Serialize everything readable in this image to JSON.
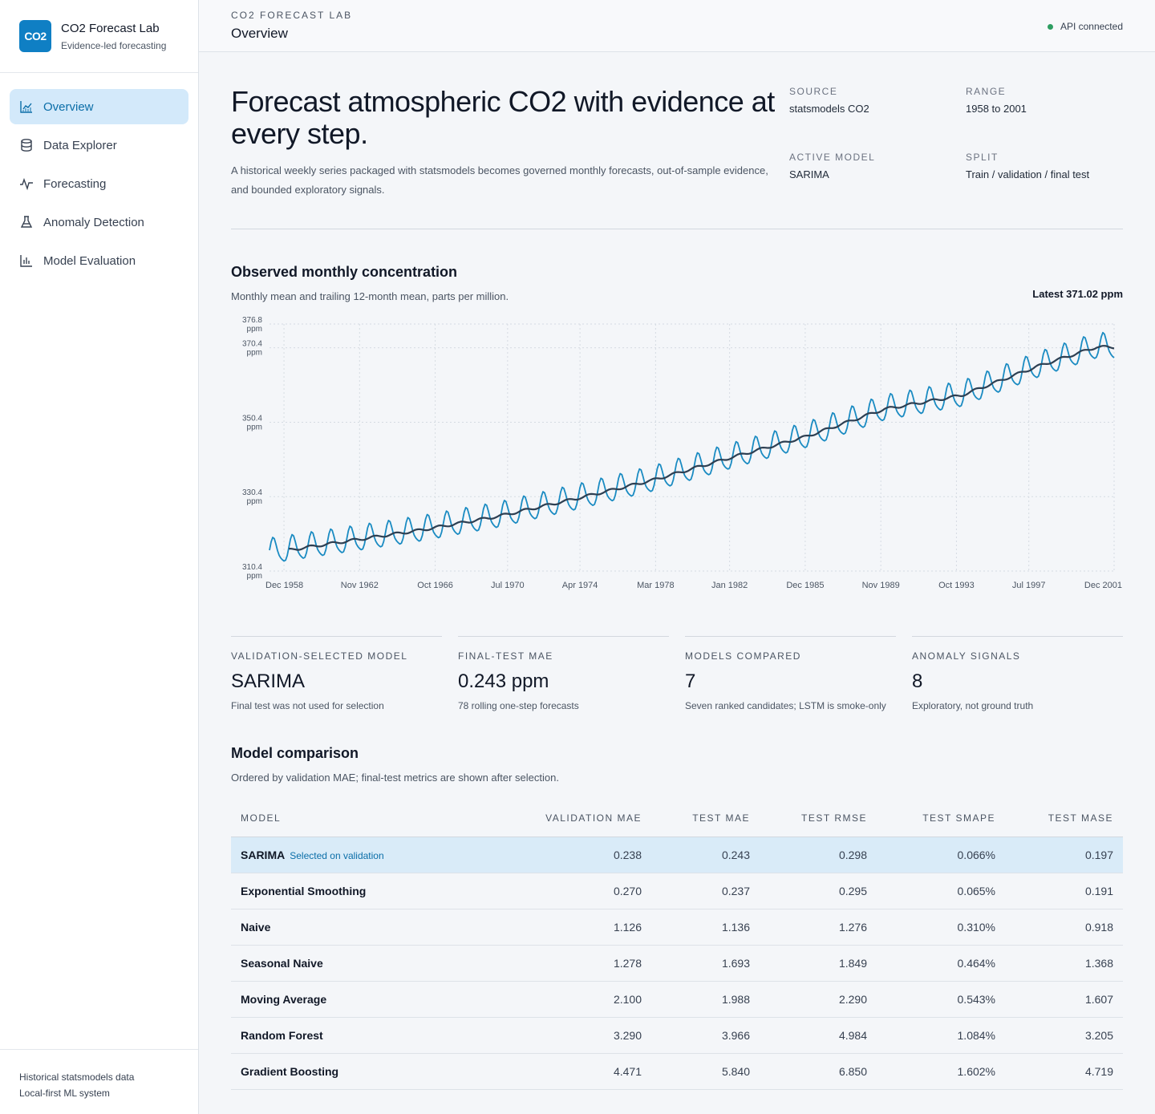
{
  "brand": {
    "logo": "CO2",
    "title": "CO2 Forecast Lab",
    "subtitle": "Evidence-led forecasting"
  },
  "nav": [
    {
      "label": "Overview",
      "icon": "chart-line-icon",
      "active": true
    },
    {
      "label": "Data Explorer",
      "icon": "database-icon",
      "active": false
    },
    {
      "label": "Forecasting",
      "icon": "activity-icon",
      "active": false
    },
    {
      "label": "Anomaly Detection",
      "icon": "flask-icon",
      "active": false
    },
    {
      "label": "Model Evaluation",
      "icon": "bar-chart-icon",
      "active": false
    }
  ],
  "sidebar_footer": {
    "line1": "Historical statsmodels data",
    "line2": "Local-first ML system"
  },
  "header": {
    "eyebrow": "CO2 FORECAST LAB",
    "title": "Overview",
    "status": "API connected",
    "status_color": "#2e9e61"
  },
  "hero": {
    "headline": "Forecast atmospheric CO2 with evidence at every step.",
    "description": "A historical weekly series packaged with statsmodels becomes governed monthly forecasts, out-of-sample evidence, and bounded exploratory signals.",
    "meta": [
      {
        "label": "SOURCE",
        "value": "statsmodels CO2"
      },
      {
        "label": "RANGE",
        "value": "1958 to 2001"
      },
      {
        "label": "ACTIVE MODEL",
        "value": "SARIMA"
      },
      {
        "label": "SPLIT",
        "value": "Train / validation / final test"
      }
    ]
  },
  "chart_section": {
    "title": "Observed monthly concentration",
    "subtitle": "Monthly mean and trailing 12-month mean, parts per million.",
    "latest": "Latest 371.02 ppm"
  },
  "chart_data": {
    "type": "line",
    "x_range": [
      "1958-03",
      "2001-12"
    ],
    "ylim": [
      310.4,
      376.8
    ],
    "y_ticks": [
      "310.4 ppm",
      "330.4 ppm",
      "350.4 ppm",
      "370.4 ppm",
      "376.8 ppm"
    ],
    "x_ticks": [
      "Dec 1958",
      "Nov 1962",
      "Oct 1966",
      "Jul 1970",
      "Apr 1974",
      "Mar 1978",
      "Jan 1982",
      "Dec 1985",
      "Nov 1989",
      "Oct 1993",
      "Jul 1997",
      "Dec 2001"
    ],
    "grid": true,
    "series": [
      {
        "description": "monthly mean",
        "color": "#1a8bc2",
        "seasonal_amplitude_ppm": 3.3,
        "trend_ppm": [
          [
            1958,
            315.3
          ],
          [
            1962,
            318.3
          ],
          [
            1966,
            321.4
          ],
          [
            1970,
            325.1
          ],
          [
            1974,
            329.8
          ],
          [
            1978,
            334.8
          ],
          [
            1982,
            340.8
          ],
          [
            1986,
            346.6
          ],
          [
            1990,
            353.9
          ],
          [
            1994,
            357.6
          ],
          [
            1998,
            365.5
          ],
          [
            2001,
            370.6
          ]
        ]
      },
      {
        "description": "trailing 12-month mean",
        "color": "#2d3f52",
        "trend_ppm": [
          [
            1959,
            315.9
          ],
          [
            1962,
            318.3
          ],
          [
            1966,
            321.4
          ],
          [
            1970,
            325.1
          ],
          [
            1974,
            329.8
          ],
          [
            1978,
            334.8
          ],
          [
            1982,
            340.8
          ],
          [
            1986,
            346.6
          ],
          [
            1990,
            353.9
          ],
          [
            1994,
            357.6
          ],
          [
            1998,
            365.5
          ],
          [
            2001,
            370.6
          ]
        ]
      }
    ]
  },
  "kpis": [
    {
      "label": "VALIDATION-SELECTED MODEL",
      "value": "SARIMA",
      "note": "Final test was not used for selection"
    },
    {
      "label": "FINAL-TEST MAE",
      "value": "0.243 ppm",
      "note": "78 rolling one-step forecasts"
    },
    {
      "label": "MODELS COMPARED",
      "value": "7",
      "note": "Seven ranked candidates; LSTM is smoke-only"
    },
    {
      "label": "ANOMALY SIGNALS",
      "value": "8",
      "note": "Exploratory, not ground truth"
    }
  ],
  "comparison": {
    "title": "Model comparison",
    "subtitle": "Ordered by validation MAE; final-test metrics are shown after selection.",
    "columns": [
      "MODEL",
      "VALIDATION MAE",
      "TEST MAE",
      "TEST RMSE",
      "TEST SMAPE",
      "TEST MASE"
    ],
    "selected_tag": "Selected on validation",
    "rows": [
      {
        "model": "SARIMA",
        "selected": true,
        "val_mae": "0.238",
        "test_mae": "0.243",
        "rmse": "0.298",
        "smape": "0.066%",
        "mase": "0.197"
      },
      {
        "model": "Exponential Smoothing",
        "selected": false,
        "val_mae": "0.270",
        "test_mae": "0.237",
        "rmse": "0.295",
        "smape": "0.065%",
        "mase": "0.191"
      },
      {
        "model": "Naive",
        "selected": false,
        "val_mae": "1.126",
        "test_mae": "1.136",
        "rmse": "1.276",
        "smape": "0.310%",
        "mase": "0.918"
      },
      {
        "model": "Seasonal Naive",
        "selected": false,
        "val_mae": "1.278",
        "test_mae": "1.693",
        "rmse": "1.849",
        "smape": "0.464%",
        "mase": "1.368"
      },
      {
        "model": "Moving Average",
        "selected": false,
        "val_mae": "2.100",
        "test_mae": "1.988",
        "rmse": "2.290",
        "smape": "0.543%",
        "mase": "1.607"
      },
      {
        "model": "Random Forest",
        "selected": false,
        "val_mae": "3.290",
        "test_mae": "3.966",
        "rmse": "4.984",
        "smape": "1.084%",
        "mase": "3.205"
      },
      {
        "model": "Gradient Boosting",
        "selected": false,
        "val_mae": "4.471",
        "test_mae": "5.840",
        "rmse": "6.850",
        "smape": "1.602%",
        "mase": "4.719"
      }
    ]
  }
}
